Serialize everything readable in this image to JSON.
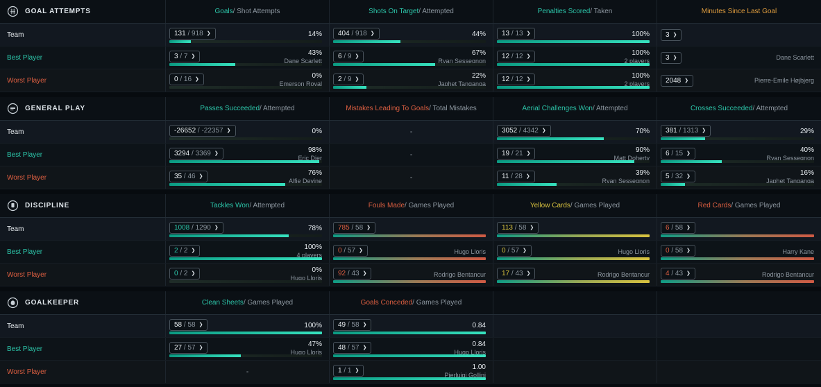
{
  "empty_placeholder": "-",
  "palette": {
    "teal": "#2cc5a9",
    "orange": "#de9c3e",
    "yellow": "#d8c23f",
    "red": "#dd5f41",
    "white": "#e8edf0",
    "grey": "#8d97a0"
  },
  "sections": [
    {
      "id": "goal-attempts",
      "title": "GOAL ATTEMPTS",
      "icon": "goal-attempts-icon",
      "columns": [
        {
          "primary": "Goals",
          "secondary": "Shot Attempts",
          "color": "teal"
        },
        {
          "primary": "Shots On Target",
          "secondary": "Attempted",
          "color": "teal"
        },
        {
          "primary": "Penalties Scored",
          "secondary": "Taken",
          "color": "teal"
        },
        {
          "primary": "Minutes Since Last Goal",
          "secondary": "",
          "color": "orange"
        }
      ],
      "rows": [
        {
          "label": "Team",
          "color": "white",
          "cells": [
            {
              "value": "131",
              "total": "918",
              "percent": "14%",
              "bar": 14
            },
            {
              "value": "404",
              "total": "918",
              "percent": "44%",
              "bar": 44
            },
            {
              "value": "13",
              "total": "13",
              "percent": "100%",
              "bar": 100
            },
            {
              "value": "3",
              "plain": true
            }
          ]
        },
        {
          "label": "Best Player",
          "color": "teal",
          "cells": [
            {
              "value": "3",
              "total": "7",
              "percent": "43%",
              "player": "Dane Scarlett",
              "bar": 43
            },
            {
              "value": "6",
              "total": "9",
              "percent": "67%",
              "player": "Ryan Sessegnon",
              "bar": 67
            },
            {
              "value": "12",
              "total": "12",
              "percent": "100%",
              "player": "2 players",
              "bar": 100
            },
            {
              "value": "3",
              "plain": true,
              "player": "Dane Scarlett"
            }
          ]
        },
        {
          "label": "Worst Player",
          "color": "red",
          "cells": [
            {
              "value": "0",
              "total": "16",
              "percent": "0%",
              "player": "Emerson Royal",
              "bar": 0
            },
            {
              "value": "2",
              "total": "9",
              "percent": "22%",
              "player": "Japhet Tanganga",
              "bar": 22
            },
            {
              "value": "12",
              "total": "12",
              "percent": "100%",
              "player": "2 players",
              "bar": 100
            },
            {
              "value": "2048",
              "plain": true,
              "player": "Pierre-Emile Højbjerg"
            }
          ]
        }
      ]
    },
    {
      "id": "general-play",
      "title": "GENERAL PLAY",
      "icon": "general-play-icon",
      "columns": [
        {
          "primary": "Passes Succeeded",
          "secondary": "Attempted",
          "color": "teal"
        },
        {
          "primary": "Mistakes Leading To Goals",
          "secondary": "Total Mistakes",
          "color": "red"
        },
        {
          "primary": "Aerial Challenges Won",
          "secondary": "Attempted",
          "color": "teal"
        },
        {
          "primary": "Crosses Succeeded",
          "secondary": "Attempted",
          "color": "teal"
        }
      ],
      "rows": [
        {
          "label": "Team",
          "color": "white",
          "cells": [
            {
              "value": "-26652",
              "total": "-22357",
              "percent": "0%",
              "bar": 0
            },
            {
              "dash": true
            },
            {
              "value": "3052",
              "total": "4342",
              "percent": "70%",
              "bar": 70
            },
            {
              "value": "381",
              "total": "1313",
              "percent": "29%",
              "bar": 29
            }
          ]
        },
        {
          "label": "Best Player",
          "color": "teal",
          "cells": [
            {
              "value": "3294",
              "total": "3369",
              "percent": "98%",
              "player": "Eric Dier",
              "bar": 98
            },
            {
              "dash": true
            },
            {
              "value": "19",
              "total": "21",
              "percent": "90%",
              "player": "Matt Doherty",
              "bar": 90
            },
            {
              "value": "6",
              "total": "15",
              "percent": "40%",
              "player": "Ryan Sessegnon",
              "bar": 40
            }
          ]
        },
        {
          "label": "Worst Player",
          "color": "red",
          "cells": [
            {
              "value": "35",
              "total": "46",
              "percent": "76%",
              "player": "Alfie Devine",
              "bar": 76
            },
            {
              "dash": true
            },
            {
              "value": "11",
              "total": "28",
              "percent": "39%",
              "player": "Ryan Sessegnon",
              "bar": 39
            },
            {
              "value": "5",
              "total": "32",
              "percent": "16%",
              "player": "Japhet Tanganga",
              "bar": 16
            }
          ]
        }
      ]
    },
    {
      "id": "discipline",
      "title": "DISCIPLINE",
      "icon": "discipline-icon",
      "columns": [
        {
          "primary": "Tackles Won",
          "secondary": "Attempted",
          "color": "teal"
        },
        {
          "primary": "Fouls Made",
          "secondary": "Games Played",
          "color": "red"
        },
        {
          "primary": "Yellow Cards",
          "secondary": "Games Played",
          "color": "yellow"
        },
        {
          "primary": "Red Cards",
          "secondary": "Games Played",
          "color": "red"
        }
      ],
      "rows": [
        {
          "label": "Team",
          "color": "white",
          "cells": [
            {
              "value": "1008",
              "total": "1290",
              "valueColor": "teal",
              "percent": "78%",
              "bar": 78
            },
            {
              "value": "785",
              "total": "58",
              "valueColor": "red",
              "bar": 100,
              "barColor": "red"
            },
            {
              "value": "113",
              "total": "58",
              "valueColor": "yellow",
              "bar": 100,
              "barColor": "yellow"
            },
            {
              "value": "6",
              "total": "58",
              "valueColor": "red",
              "bar": 100,
              "barColor": "red"
            }
          ]
        },
        {
          "label": "Best Player",
          "color": "teal",
          "cells": [
            {
              "value": "2",
              "total": "2",
              "valueColor": "teal",
              "percent": "100%",
              "player": "4 players",
              "bar": 100
            },
            {
              "value": "0",
              "total": "57",
              "valueColor": "red",
              "player": "Hugo Lloris",
              "bar": 100,
              "barColor": "red"
            },
            {
              "value": "0",
              "total": "57",
              "valueColor": "yellow",
              "player": "Hugo Lloris",
              "bar": 100,
              "barColor": "yellow"
            },
            {
              "value": "0",
              "total": "58",
              "valueColor": "red",
              "player": "Harry Kane",
              "bar": 100,
              "barColor": "red"
            }
          ]
        },
        {
          "label": "Worst Player",
          "color": "red",
          "cells": [
            {
              "value": "0",
              "total": "2",
              "valueColor": "teal",
              "percent": "0%",
              "player": "Hugo Lloris",
              "bar": 0
            },
            {
              "value": "92",
              "total": "43",
              "valueColor": "red",
              "player": "Rodrigo Bentancur",
              "bar": 100,
              "barColor": "red"
            },
            {
              "value": "17",
              "total": "43",
              "valueColor": "yellow",
              "player": "Rodrigo Bentancur",
              "bar": 100,
              "barColor": "yellow"
            },
            {
              "value": "4",
              "total": "43",
              "valueColor": "red",
              "player": "Rodrigo Bentancur",
              "bar": 100,
              "barColor": "red"
            }
          ]
        }
      ]
    },
    {
      "id": "goalkeeper",
      "title": "GOALKEEPER",
      "icon": "goalkeeper-icon",
      "columns": [
        {
          "primary": "Clean Sheets",
          "secondary": "Games Played",
          "color": "teal"
        },
        {
          "primary": "Goals Conceded",
          "secondary": "Games Played",
          "color": "red"
        },
        {
          "primary": "",
          "secondary": "",
          "color": "grey"
        },
        {
          "primary": "",
          "secondary": "",
          "color": "grey"
        }
      ],
      "rows": [
        {
          "label": "Team",
          "color": "white",
          "cells": [
            {
              "value": "58",
              "total": "58",
              "percent": "100%",
              "bar": 100
            },
            {
              "value": "49",
              "total": "58",
              "percent": "0.84",
              "bar": 100
            },
            {},
            {}
          ]
        },
        {
          "label": "Best Player",
          "color": "teal",
          "cells": [
            {
              "value": "27",
              "total": "57",
              "percent": "47%",
              "player": "Hugo Lloris",
              "bar": 47
            },
            {
              "value": "48",
              "total": "57",
              "percent": "0.84",
              "player": "Hugo Lloris",
              "bar": 100
            },
            {},
            {}
          ]
        },
        {
          "label": "Worst Player",
          "color": "red",
          "cells": [
            {
              "dash": true
            },
            {
              "value": "1",
              "total": "1",
              "percent": "1.00",
              "player": "Pierluigi Gollini",
              "bar": 100
            },
            {},
            {}
          ]
        }
      ]
    }
  ]
}
